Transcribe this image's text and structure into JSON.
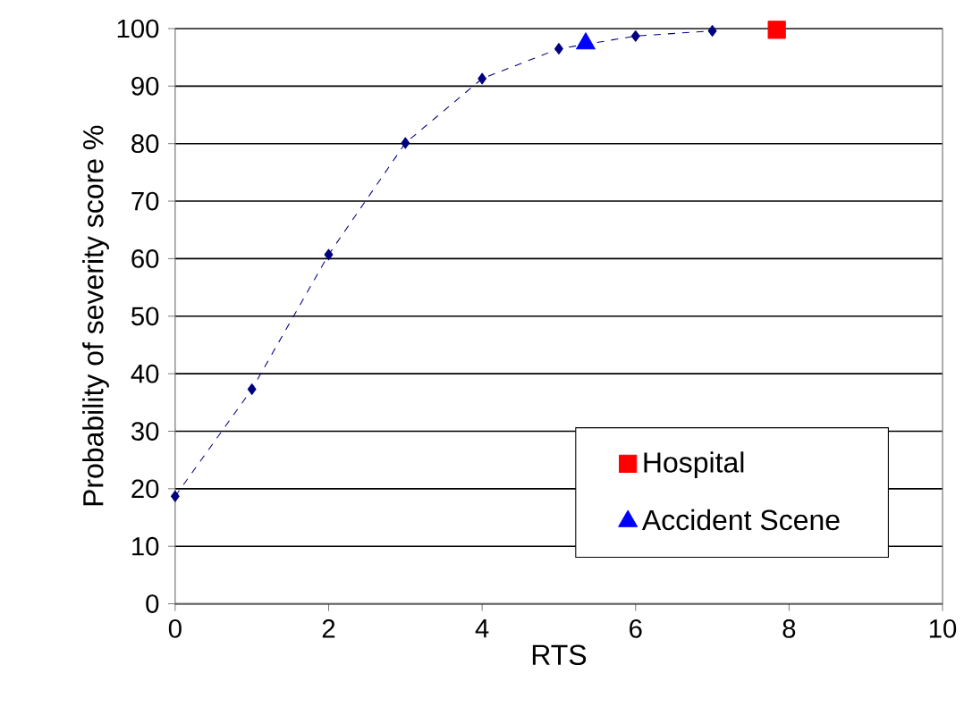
{
  "chart_data": {
    "type": "line",
    "xlabel": "RTS",
    "ylabel": "Probability of severity  score %",
    "xlim": [
      0,
      10
    ],
    "xticks": [
      0,
      2,
      4,
      6,
      8,
      10
    ],
    "ylim": [
      0,
      100
    ],
    "yticks": [
      0,
      10,
      20,
      30,
      40,
      50,
      60,
      70,
      80,
      90,
      100
    ],
    "grid": "y",
    "legend": "bottom right",
    "series": [
      {
        "type": "line",
        "color": "#000080",
        "marker": "diamond",
        "line_style": "dashed",
        "x": [
          0,
          1,
          2,
          3,
          4,
          5,
          6,
          7
        ],
        "values": [
          18.7,
          37.3,
          60.7,
          80.1,
          91.3,
          96.5,
          98.7,
          99.6
        ]
      },
      {
        "type": "scatter",
        "name": "Hospital",
        "color": "#ff0000",
        "marker": "square",
        "x": [
          7.84
        ],
        "values": [
          99.8
        ]
      },
      {
        "type": "scatter",
        "name": "Accident Scene",
        "color": "#0000ff",
        "marker": "triangle",
        "x": [
          5.35
        ],
        "values": [
          97.4
        ]
      }
    ]
  }
}
